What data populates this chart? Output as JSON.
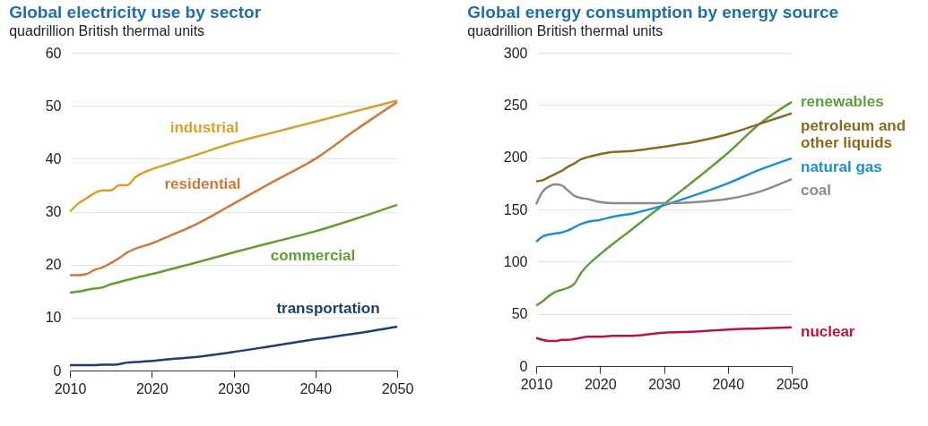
{
  "chart_data": [
    {
      "type": "line",
      "title": "Global electricity use by sector",
      "ylabel": "quadrillion British thermal units",
      "x": [
        2010,
        2011,
        2012,
        2013,
        2014,
        2015,
        2016,
        2017,
        2018,
        2020,
        2022,
        2025,
        2030,
        2035,
        2040,
        2045,
        2050
      ],
      "series": [
        {
          "name": "industrial",
          "color": "#d9a12b",
          "values": [
            30,
            31.5,
            32.5,
            33.5,
            34,
            34,
            35,
            35,
            36.5,
            38,
            39,
            40.5,
            43,
            45,
            47,
            49,
            51
          ]
        },
        {
          "name": "residential",
          "color": "#d2773a",
          "values": [
            18,
            18,
            18.2,
            19,
            19.5,
            20.3,
            21.2,
            22.3,
            23,
            24,
            25.3,
            27.3,
            31.5,
            35.8,
            40,
            45.5,
            50.7
          ]
        },
        {
          "name": "commercial",
          "color": "#5f9e2f",
          "values": [
            14.7,
            14.9,
            15.2,
            15.5,
            15.7,
            16.3,
            16.7,
            17.1,
            17.5,
            18.2,
            19,
            20.2,
            22.3,
            24.3,
            26.3,
            28.7,
            31.3
          ]
        },
        {
          "name": "transportation",
          "color": "#1d3f6e",
          "values": [
            1,
            1,
            1,
            1,
            1.1,
            1.1,
            1.2,
            1.5,
            1.6,
            1.8,
            2.1,
            2.5,
            3.5,
            4.7,
            5.9,
            7,
            8.3
          ]
        }
      ],
      "xlim": [
        2010,
        2050
      ],
      "xticks": [
        2010,
        2020,
        2030,
        2040,
        2050
      ],
      "ylim": [
        0,
        60
      ],
      "yticks": [
        0,
        10,
        20,
        30,
        40,
        50,
        60
      ],
      "grid": "y",
      "legend": false
    },
    {
      "type": "line",
      "title": "Global energy consumption by energy source",
      "ylabel": "quadrillion British thermal units",
      "x": [
        2010,
        2011,
        2012,
        2013,
        2014,
        2015,
        2016,
        2017,
        2018,
        2020,
        2022,
        2025,
        2030,
        2035,
        2040,
        2045,
        2050
      ],
      "series": [
        {
          "name": "renewables",
          "color": "#5e9e3a",
          "values": [
            58,
            62,
            67,
            71,
            73,
            75,
            79,
            89,
            96,
            107,
            117,
            131,
            155,
            179,
            204,
            232,
            253
          ]
        },
        {
          "name": "petroleum and other liquids",
          "color": "#8a6a1e",
          "values": [
            177,
            178,
            181,
            184,
            187,
            191,
            194,
            198,
            200,
            203,
            205,
            206,
            210,
            215,
            222,
            232,
            242
          ]
        },
        {
          "name": "natural gas",
          "color": "#1d8fd0",
          "values": [
            119,
            124,
            126,
            127,
            128,
            130,
            133,
            136,
            138,
            140,
            143,
            146,
            154,
            164,
            175,
            188,
            199
          ]
        },
        {
          "name": "coal",
          "color": "#8c8c8c",
          "values": [
            155,
            167,
            172,
            174,
            173,
            168,
            163,
            161,
            160,
            157,
            156,
            156,
            156,
            157,
            160,
            167,
            179
          ]
        },
        {
          "name": "nuclear",
          "color": "#b5173f",
          "values": [
            27,
            25,
            24,
            24,
            25,
            25,
            26,
            27,
            28,
            28,
            29,
            29,
            32,
            33,
            35,
            36,
            37
          ]
        }
      ],
      "xlim": [
        2010,
        2050
      ],
      "xticks": [
        2010,
        2020,
        2030,
        2040,
        2050
      ],
      "ylim": [
        0,
        300
      ],
      "yticks": [
        0,
        50,
        100,
        150,
        200,
        250,
        300
      ],
      "grid": "y",
      "legend": false
    }
  ]
}
